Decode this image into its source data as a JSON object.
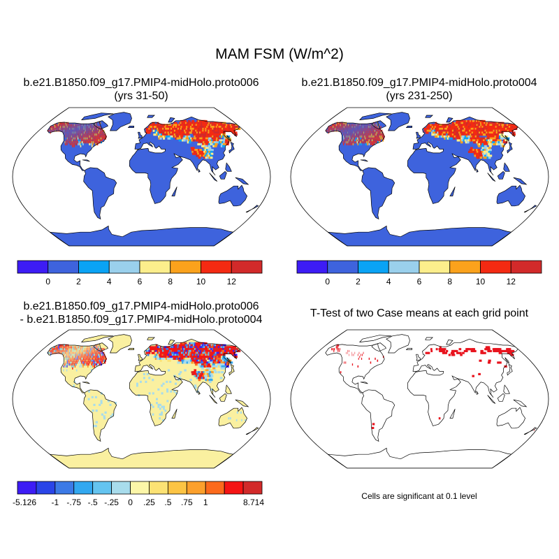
{
  "figure": {
    "title": "MAM FSM (W/m^2)"
  },
  "panels": [
    {
      "title_line1": "b.e21.B1850.f09_g17.PMIP4-midHolo.proto006",
      "title_line2": "(yrs 31-50)"
    },
    {
      "title_line1": "b.e21.B1850.f09_g17.PMIP4-midHolo.proto004",
      "title_line2": "(yrs 231-250)"
    },
    {
      "title_line1": "b.e21.B1850.f09_g17.PMIP4-midHolo.proto006",
      "title_line2": "- b.e21.B1850.f09_g17.PMIP4-midHolo.proto004"
    },
    {
      "title_line1": "T-Test of two Case means at each grid point",
      "footnote": "Cells are significant at 0.1 level"
    }
  ],
  "colorbar_case": {
    "colors": [
      "#3d1cf5",
      "#3e63dd",
      "#0aa3f5",
      "#9ad0ec",
      "#fcee8c",
      "#fba21c",
      "#f42a12",
      "#d22a2a"
    ],
    "labels": [
      "0",
      "2",
      "4",
      "6",
      "8",
      "10",
      "12"
    ]
  },
  "colorbar_diff": {
    "colors": [
      "#3d1cf5",
      "#2a45e8",
      "#3c7ae6",
      "#32a8f0",
      "#64c4f0",
      "#a8dcec",
      "#fcf6a8",
      "#fce274",
      "#fcc444",
      "#fca02c",
      "#fc6a1c",
      "#f51414",
      "#d22a2a"
    ],
    "labels": [
      "-5.126",
      "-1",
      "-.75",
      "-.5",
      "-.25",
      "0",
      ".25",
      ".5",
      ".75",
      "1",
      "8.714"
    ]
  },
  "map_colors": {
    "ocean": "#ffffff",
    "land_case": "#3e63dd",
    "land_diff": "#faf0a0",
    "significant": "#e8141e",
    "coast": "#000000"
  }
}
